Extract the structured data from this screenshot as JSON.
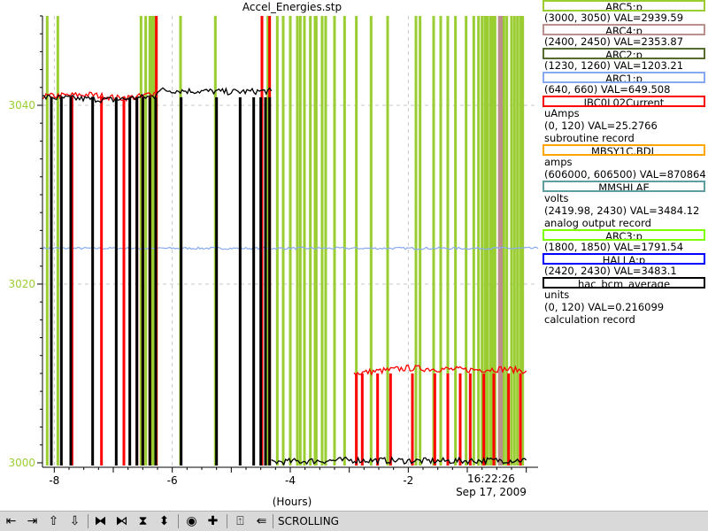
{
  "chart_data": {
    "type": "line",
    "title": "Accel_Energies.stp",
    "x_unit_label": "(Hours)",
    "x_range": [
      -8.2,
      0.2
    ],
    "x_ticks": [
      "-8",
      "-6",
      "-4",
      "-2"
    ],
    "x_tick_values": [
      -8,
      -6,
      -4,
      -2
    ],
    "end_time": "16:22:26",
    "end_date": "Sep 17, 2009",
    "y_range": [
      2999.5,
      3050
    ],
    "y_ticks": [
      "3000",
      "3020",
      "3040"
    ],
    "y_tick_values": [
      3000,
      3020,
      3040
    ],
    "y_tick_color": "#9acd32",
    "grid": true,
    "legend_placement": "right",
    "series": [
      {
        "name": "ARC5:p",
        "color": "#9acd32",
        "lines": [
          "(3000, 3050) VAL=2939.59"
        ],
        "spikes": [
          -8.12,
          -7.94,
          -6.53,
          -6.45,
          -6.38,
          -6.36,
          -6.34,
          -6.3,
          -6.27,
          -5.86,
          -5.27,
          -4.38,
          -4.22,
          -4.12,
          -4.0,
          -3.88,
          -3.83,
          -3.76,
          -3.66,
          -3.58,
          -3.56,
          -3.46,
          -3.4,
          -3.25,
          -3.08,
          -2.88,
          -2.63,
          -2.35,
          -1.87,
          -1.8,
          -1.57,
          -1.45,
          -1.33,
          -1.2,
          -1.02,
          -0.89,
          -0.81,
          -0.75,
          -0.7,
          -0.66,
          -0.61,
          -0.59,
          -0.56,
          -0.53,
          -0.44,
          -0.38,
          -0.33,
          -0.25,
          -0.2,
          -0.15,
          -0.1,
          -0.06
        ]
      },
      {
        "name": "ARC4:p",
        "color": "#bc8f8f",
        "lines": [
          "(2400, 2450) VAL=2353.87"
        ],
        "spikes": [
          -0.45,
          -0.43
        ]
      },
      {
        "name": "ARC2:p",
        "color": "#556b2f",
        "lines": [
          "(1230, 1260) VAL=1203.21"
        ]
      },
      {
        "name": "ARC1:p",
        "color": "#87a9f0",
        "lines": [
          "(640, 660) VAL=649.508"
        ],
        "level": 3024.0
      },
      {
        "name": "IBC0L02Current",
        "color": "#ff0000",
        "lines": [
          "uAmps",
          "(0, 120) VAL=25.2766",
          "subroutine record"
        ],
        "segments": [
          {
            "x": [
              -8.2,
              -7.4,
              -6.9,
              -6.5,
              -6.3
            ],
            "y": [
              3041.0,
              3041.2,
              3040.8,
              3041.0,
              3041.5
            ]
          },
          {
            "x": [
              -2.92,
              -2.0,
              -1.0,
              -0.4,
              0.0
            ],
            "y": [
              3010.0,
              3010.6,
              3010.4,
              3010.5,
              3010.3
            ]
          }
        ],
        "dropouts": [
          -8.05,
          -7.7,
          -7.2,
          -6.82,
          -6.6,
          -6.5,
          -6.38,
          -6.27,
          -4.48,
          -4.35,
          -2.88,
          -2.78,
          -2.52,
          -2.3,
          -1.93,
          -1.55,
          -1.33,
          -1.12,
          -0.95,
          -0.72,
          -0.55,
          -0.3,
          -0.1
        ]
      },
      {
        "name": "MBSY1C.BDL",
        "color": "#ffa500",
        "lines": [
          "amps",
          "(606000, 606500) VAL=870864"
        ]
      },
      {
        "name": "MMSHLAE",
        "color": "#5f9ea0",
        "lines": [
          "volts",
          "(2419.98, 2430)  VAL=3484.12",
          "analog output record"
        ]
      },
      {
        "name": "ARC3:p",
        "color": "#7fff00",
        "lines": [
          "(1800, 1850) VAL=1791.54"
        ]
      },
      {
        "name": "HALLA:p",
        "color": "#0000ff",
        "lines": [
          "(2420, 2430) VAL=3483.1"
        ]
      },
      {
        "name": "hac_bcm_average",
        "color": "#000000",
        "lines": [
          "units",
          "(0, 120) VAL=0.216099",
          "calculation record"
        ],
        "segments": [
          {
            "x": [
              -8.2,
              -7.0,
              -6.3,
              -6.25,
              -5.0,
              -4.32
            ],
            "y": [
              3040.9,
              3040.6,
              3041.0,
              3041.7,
              3041.5,
              3041.6
            ]
          },
          {
            "x": [
              -4.32,
              -3.0,
              -1.5,
              0.0
            ],
            "y": [
              3000.1,
              3000.3,
              3000.2,
              3000.3
            ]
          }
        ],
        "dropouts": [
          -8.05,
          -7.88,
          -7.72,
          -7.35,
          -6.95,
          -6.72,
          -6.6,
          -6.5,
          -6.38,
          -6.28,
          -5.85,
          -5.25,
          -4.85,
          -4.62,
          -4.5,
          -4.42,
          -4.35
        ]
      }
    ]
  },
  "toolbar": {
    "buttons": [
      {
        "glyph": "⇤",
        "name": "scroll-left-button"
      },
      {
        "glyph": "⇥",
        "name": "scroll-right-button"
      },
      {
        "glyph": "⇧",
        "name": "scroll-up-button"
      },
      {
        "glyph": "⇩",
        "name": "scroll-down-button"
      },
      {
        "glyph": "⧓",
        "name": "zoom-out-horizontal-button"
      },
      {
        "glyph": "⧑",
        "name": "zoom-in-horizontal-button"
      },
      {
        "glyph": "⧗",
        "name": "zoom-out-vertical-button"
      },
      {
        "glyph": "⬍",
        "name": "zoom-in-vertical-button"
      },
      {
        "glyph": "◉",
        "name": "record-button"
      },
      {
        "glyph": "✚",
        "name": "add-button"
      },
      {
        "glyph": "⍐",
        "name": "auto-scale-button"
      },
      {
        "glyph": "⇚",
        "name": "back-button"
      }
    ],
    "status": "SCROLLING"
  }
}
